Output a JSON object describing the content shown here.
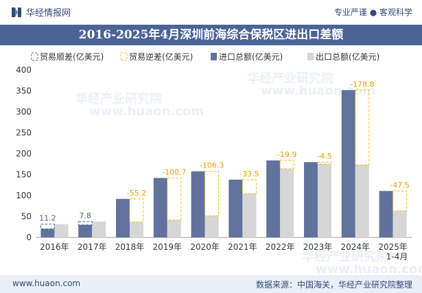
{
  "header": {
    "brand_name": "华经情报网",
    "tagline": "专业严谨 ● 客观科学",
    "title": "2016-2025年4月深圳前海综合保税区进出口差额"
  },
  "footer": {
    "website": "www.huaon.com",
    "source": "数据来源：中国海关，华经产业研究院整理"
  },
  "watermark": {
    "text": "华经产业研究院",
    "url": "www.huaon.com"
  },
  "colors": {
    "import": "#61739d",
    "export": "#d6d6d6",
    "surplus_border": "#4a6496",
    "deficit_border": "#f0c020"
  },
  "chart_data": {
    "type": "bar",
    "title": "2016-2025年4月深圳前海综合保税区进出口差额",
    "categories": [
      "2016年",
      "2017年",
      "2018年",
      "2019年",
      "2020年",
      "2021年",
      "2022年",
      "2023年",
      "2024年",
      "2025年 1-4月"
    ],
    "series": [
      {
        "name": "进口总额(亿美元)",
        "values": [
          20.5,
          30.0,
          92.0,
          142.0,
          158.0,
          138.0,
          184.0,
          180.0,
          352.0,
          111.0
        ]
      },
      {
        "name": "出口总额(亿美元)",
        "values": [
          31.7,
          37.8,
          36.8,
          41.3,
          51.7,
          104.5,
          164.1,
          175.5,
          173.2,
          63.5
        ]
      }
    ],
    "balance": {
      "name_surplus": "贸易顺差(亿美元)",
      "name_deficit": "贸易逆差(亿美元)",
      "values": [
        11.2,
        7.8,
        -55.2,
        -100.7,
        -106.3,
        -33.5,
        -19.9,
        -4.5,
        -178.8,
        -47.5
      ],
      "labels": [
        "11.2",
        "7.8",
        "-55.2",
        "-100.7",
        "-106.3",
        "-33.5",
        "-19.9",
        "-4.5",
        "-178.8",
        "-47.5"
      ]
    },
    "legend": [
      "贸易顺差(亿美元)",
      "贸易逆差(亿美元)",
      "进口总额(亿美元)",
      "出口总额(亿美元)"
    ],
    "y_ticks": [
      "0",
      "50",
      "100",
      "150",
      "200",
      "250",
      "300",
      "350",
      "400"
    ],
    "ylim": [
      0,
      400
    ],
    "xlabel": "",
    "ylabel": "",
    "legend_position": "top-left"
  }
}
